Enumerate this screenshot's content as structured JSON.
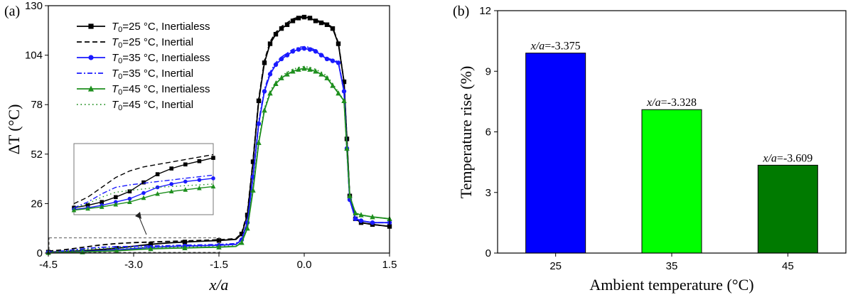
{
  "chart_data": [
    {
      "type": "line",
      "panel_label": "(a)",
      "xlabel": "x/a",
      "ylabel": "ΔT (°C)",
      "xlim": [
        -4.5,
        1.5
      ],
      "ylim": [
        0,
        130
      ],
      "xticks": [
        "-4.5",
        "-3.0",
        "-1.5",
        "0.0",
        "1.5"
      ],
      "yticks": [
        "0",
        "26",
        "52",
        "78",
        "104",
        "130"
      ],
      "legend_position": "top-left",
      "series": [
        {
          "name": "T0=25 °C, Inertialess",
          "sub_before": "T",
          "sub": "0",
          "sub_after": "=25 °C, Inertialess",
          "color": "#000000",
          "style": "solid",
          "marker": "square",
          "x": [
            -4.5,
            -4.2,
            -3.9,
            -3.6,
            -3.3,
            -3.0,
            -2.7,
            -2.4,
            -2.1,
            -1.8,
            -1.5,
            -1.2,
            -1.1,
            -1.0,
            -0.9,
            -0.8,
            -0.7,
            -0.6,
            -0.5,
            -0.4,
            -0.3,
            -0.2,
            -0.1,
            0.0,
            0.1,
            0.2,
            0.3,
            0.4,
            0.5,
            0.6,
            0.7,
            0.75,
            0.8,
            0.9,
            1.0,
            1.2,
            1.5
          ],
          "y": [
            0.5,
            0.8,
            1.2,
            1.8,
            2.5,
            3.6,
            4.6,
            5.3,
            5.8,
            6.2,
            6.6,
            7.2,
            10,
            20,
            48,
            80,
            100,
            110,
            115,
            118,
            120,
            122,
            123.5,
            124,
            123.5,
            122,
            121,
            120,
            118,
            110,
            90,
            60,
            30,
            18,
            16,
            15,
            14
          ]
        },
        {
          "name": "T0=25 °C, Inertial",
          "sub_before": "T",
          "sub": "0",
          "sub_after": "=25 °C, Inertial",
          "color": "#000000",
          "style": "dash",
          "marker": "none",
          "x": [
            -4.5,
            -4.2,
            -3.9,
            -3.6,
            -3.3,
            -3.0,
            -2.7,
            -2.4,
            -2.1,
            -1.8,
            -1.5,
            -1.2,
            -1.1,
            -1.0,
            -0.9,
            -0.8,
            -0.7,
            -0.6,
            -0.5,
            -0.4,
            -0.3,
            -0.2,
            -0.1,
            0.0,
            0.1,
            0.2,
            0.3,
            0.4,
            0.5,
            0.6,
            0.7,
            0.75,
            0.8,
            0.9,
            1.0,
            1.2,
            1.5
          ],
          "y": [
            1.0,
            1.8,
            3.0,
            4.2,
            5.0,
            5.5,
            5.8,
            6.1,
            6.4,
            6.7,
            7.0,
            7.6,
            10.5,
            21,
            49,
            81,
            101,
            111,
            116,
            119,
            121,
            123,
            124,
            124.5,
            124,
            122.5,
            121.5,
            120.5,
            118.5,
            110.5,
            90,
            60,
            30,
            18,
            16,
            15,
            14
          ]
        },
        {
          "name": "T0=35 °C, Inertialess",
          "sub_before": "T",
          "sub": "0",
          "sub_after": "=35 °C, Inertialess",
          "color": "#1a1aff",
          "style": "solid",
          "marker": "circle",
          "x": [
            -4.5,
            -4.2,
            -3.9,
            -3.6,
            -3.3,
            -3.0,
            -2.7,
            -2.4,
            -2.1,
            -1.8,
            -1.5,
            -1.2,
            -1.1,
            -1.0,
            -0.9,
            -0.8,
            -0.7,
            -0.6,
            -0.5,
            -0.4,
            -0.3,
            -0.2,
            -0.1,
            0.0,
            0.1,
            0.2,
            0.3,
            0.4,
            0.5,
            0.6,
            0.7,
            0.75,
            0.8,
            0.9,
            1.0,
            1.2,
            1.5
          ],
          "y": [
            0.3,
            0.5,
            0.8,
            1.2,
            1.6,
            2.3,
            3.0,
            3.4,
            3.7,
            3.9,
            4.1,
            4.6,
            7,
            16,
            40,
            68,
            85,
            94,
            99,
            102,
            104,
            106,
            107,
            107.5,
            107,
            106,
            104,
            102,
            101,
            100,
            85,
            55,
            28,
            18,
            17,
            16,
            16
          ]
        },
        {
          "name": "T0=35 °C, Inertial",
          "sub_before": "T",
          "sub": "0",
          "sub_after": "=35 °C, Inertial",
          "color": "#1a1aff",
          "style": "dashdot",
          "marker": "none",
          "x": [
            -4.5,
            -4.2,
            -3.9,
            -3.6,
            -3.3,
            -3.0,
            -2.7,
            -2.4,
            -2.1,
            -1.8,
            -1.5,
            -1.2,
            -1.1,
            -1.0,
            -0.9,
            -0.8,
            -0.7,
            -0.6,
            -0.5,
            -0.4,
            -0.3,
            -0.2,
            -0.1,
            0.0,
            0.1,
            0.2,
            0.3,
            0.4,
            0.5,
            0.6,
            0.7,
            0.75,
            0.8,
            0.9,
            1.0,
            1.2,
            1.5
          ],
          "y": [
            0.5,
            1.2,
            2.2,
            3.0,
            3.3,
            3.5,
            3.7,
            3.9,
            4.1,
            4.3,
            4.5,
            5.0,
            7.5,
            16.5,
            41,
            69,
            86,
            95,
            100,
            103,
            105,
            107,
            108,
            108.5,
            108,
            106.5,
            104.5,
            102.5,
            101.5,
            100.5,
            85,
            55,
            28,
            18,
            17,
            16,
            16
          ]
        },
        {
          "name": "T0=45 °C, Inertialess",
          "sub_before": "T",
          "sub": "0",
          "sub_after": "=45 °C, Inertialess",
          "color": "#1e8f1e",
          "style": "solid",
          "marker": "triangle",
          "x": [
            -4.5,
            -4.2,
            -3.9,
            -3.6,
            -3.3,
            -3.0,
            -2.7,
            -2.4,
            -2.1,
            -1.8,
            -1.5,
            -1.2,
            -1.1,
            -1.0,
            -0.9,
            -0.8,
            -0.7,
            -0.6,
            -0.5,
            -0.4,
            -0.3,
            -0.2,
            -0.1,
            0.0,
            0.1,
            0.2,
            0.3,
            0.4,
            0.5,
            0.6,
            0.7,
            0.75,
            0.8,
            0.9,
            1.0,
            1.2,
            1.5
          ],
          "y": [
            0.2,
            0.4,
            0.6,
            0.9,
            1.2,
            1.7,
            2.2,
            2.5,
            2.7,
            2.9,
            3.1,
            3.5,
            5.5,
            13,
            33,
            58,
            75,
            84,
            89,
            92,
            94,
            95.5,
            96.5,
            97,
            96.5,
            95.5,
            94,
            92,
            88,
            84,
            80,
            55,
            30,
            21,
            20,
            19,
            18
          ]
        },
        {
          "name": "T0=45 °C, Inertial",
          "sub_before": "T",
          "sub": "0",
          "sub_after": "=45 °C, Inertial",
          "color": "#1e8f1e",
          "style": "dot",
          "marker": "none",
          "x": [
            -4.5,
            -4.2,
            -3.9,
            -3.6,
            -3.3,
            -3.0,
            -2.7,
            -2.4,
            -2.1,
            -1.8,
            -1.5,
            -1.2,
            -1.1,
            -1.0,
            -0.9,
            -0.8,
            -0.7,
            -0.6,
            -0.5,
            -0.4,
            -0.3,
            -0.2,
            -0.1,
            0.0,
            0.1,
            0.2,
            0.3,
            0.4,
            0.5,
            0.6,
            0.7,
            0.75,
            0.8,
            0.9,
            1.0,
            1.2,
            1.5
          ],
          "y": [
            0.4,
            1.0,
            1.8,
            2.4,
            2.6,
            2.8,
            3.0,
            3.1,
            3.2,
            3.3,
            3.4,
            3.8,
            6,
            13.5,
            34,
            59,
            76,
            85,
            90,
            93,
            95,
            96.5,
            97.5,
            98,
            97.5,
            96.5,
            95,
            93,
            89,
            84.5,
            80,
            55,
            30,
            21,
            20,
            19,
            18
          ]
        }
      ],
      "inset": {
        "xlim": [
          -4.5,
          -1.5
        ],
        "ylim": [
          0,
          8
        ]
      }
    },
    {
      "type": "bar",
      "panel_label": "(b)",
      "xlabel": "Ambient temperature (°C)",
      "ylabel": "Temperature rise (%)",
      "ylim": [
        0,
        12
      ],
      "yticks": [
        "0",
        "3",
        "6",
        "9",
        "12"
      ],
      "categories": [
        "25",
        "35",
        "45"
      ],
      "values": [
        9.9,
        7.1,
        4.35
      ],
      "colors": [
        "#0000ff",
        "#00ff00",
        "#007a00"
      ],
      "labels": [
        {
          "var": "x/a",
          "rest": "=-3.375"
        },
        {
          "var": "x/a",
          "rest": "=-3.328"
        },
        {
          "var": "x/a",
          "rest": "=-3.609"
        }
      ]
    }
  ]
}
